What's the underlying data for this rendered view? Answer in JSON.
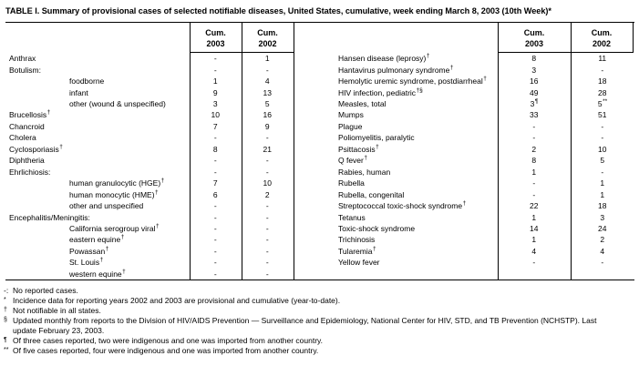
{
  "title": "TABLE I. Summary of provisional cases of selected notifiable diseases, United States, cumulative, week ending March 8, 2003 (10th Week)*",
  "header": {
    "cols": [
      {
        "l1": "Cum.",
        "l2": "2003"
      },
      {
        "l1": "Cum.",
        "l2": "2002"
      },
      {
        "l1": "Cum.",
        "l2": "2003"
      },
      {
        "l1": "Cum.",
        "l2": "2002"
      }
    ]
  },
  "left_rows": [
    {
      "label": "Anthrax",
      "sup": "",
      "indent": 0,
      "c2003": "-",
      "c2002": "1"
    },
    {
      "label": "Botulism:",
      "sup": "",
      "indent": 0,
      "c2003": "-",
      "c2002": "-"
    },
    {
      "label": "foodborne",
      "sup": "",
      "indent": 1,
      "c2003": "1",
      "c2002": "4"
    },
    {
      "label": "infant",
      "sup": "",
      "indent": 1,
      "c2003": "9",
      "c2002": "13"
    },
    {
      "label": "other (wound & unspecified)",
      "sup": "",
      "indent": 1,
      "c2003": "3",
      "c2002": "5"
    },
    {
      "label": "Brucellosis",
      "sup": "†",
      "indent": 0,
      "c2003": "10",
      "c2002": "16"
    },
    {
      "label": "Chancroid",
      "sup": "",
      "indent": 0,
      "c2003": "7",
      "c2002": "9"
    },
    {
      "label": "Cholera",
      "sup": "",
      "indent": 0,
      "c2003": "-",
      "c2002": "-"
    },
    {
      "label": "Cyclosporiasis",
      "sup": "†",
      "indent": 0,
      "c2003": "8",
      "c2002": "21"
    },
    {
      "label": "Diphtheria",
      "sup": "",
      "indent": 0,
      "c2003": "-",
      "c2002": "-"
    },
    {
      "label": "Ehrlichiosis:",
      "sup": "",
      "indent": 0,
      "c2003": "-",
      "c2002": "-"
    },
    {
      "label": "human granulocytic (HGE)",
      "sup": "†",
      "indent": 1,
      "c2003": "7",
      "c2002": "10"
    },
    {
      "label": "human monocytic (HME)",
      "sup": "†",
      "indent": 1,
      "c2003": "6",
      "c2002": "2"
    },
    {
      "label": "other and unspecified",
      "sup": "",
      "indent": 1,
      "c2003": "-",
      "c2002": "-"
    },
    {
      "label": "Encephalitis/Meningitis:",
      "sup": "",
      "indent": 0,
      "c2003": "-",
      "c2002": "-"
    },
    {
      "label": "California serogroup viral",
      "sup": "†",
      "indent": 1,
      "c2003": "-",
      "c2002": "-"
    },
    {
      "label": "eastern equine",
      "sup": "†",
      "indent": 1,
      "c2003": "-",
      "c2002": "-"
    },
    {
      "label": "Powassan",
      "sup": "†",
      "indent": 1,
      "c2003": "-",
      "c2002": "-"
    },
    {
      "label": "St. Louis",
      "sup": "†",
      "indent": 1,
      "c2003": "-",
      "c2002": "-"
    },
    {
      "label": "western equine",
      "sup": "†",
      "indent": 1,
      "c2003": "-",
      "c2002": "-"
    }
  ],
  "right_rows": [
    {
      "label": "Hansen disease (leprosy)",
      "sup": "†",
      "c2003": "8",
      "c2002": "11"
    },
    {
      "label": "Hantavirus pulmonary syndrome",
      "sup": "†",
      "c2003": "3",
      "c2002": "-"
    },
    {
      "label": "Hemolytic uremic syndrome, postdiarrheal",
      "sup": "†",
      "c2003": "16",
      "c2002": "18"
    },
    {
      "label": "HIV infection, pediatric",
      "sup": "†§",
      "c2003": "49",
      "c2002": "28"
    },
    {
      "label": "Measles, total",
      "sup": "",
      "c2003": "3",
      "c2003sup": "¶",
      "c2002": "5",
      "c2002sup": "**"
    },
    {
      "label": "Mumps",
      "sup": "",
      "c2003": "33",
      "c2002": "51"
    },
    {
      "label": "Plague",
      "sup": "",
      "c2003": "-",
      "c2002": "-"
    },
    {
      "label": "Poliomyelitis, paralytic",
      "sup": "",
      "c2003": "-",
      "c2002": "-"
    },
    {
      "label": "Psittacosis",
      "sup": "†",
      "c2003": "2",
      "c2002": "10"
    },
    {
      "label": "Q fever",
      "sup": "†",
      "c2003": "8",
      "c2002": "5"
    },
    {
      "label": "Rabies, human",
      "sup": "",
      "c2003": "1",
      "c2002": "-"
    },
    {
      "label": "Rubella",
      "sup": "",
      "c2003": "-",
      "c2002": "1"
    },
    {
      "label": "Rubella, congenital",
      "sup": "",
      "c2003": "-",
      "c2002": "1"
    },
    {
      "label": "Streptococcal toxic-shock syndrome",
      "sup": "†",
      "c2003": "22",
      "c2002": "18"
    },
    {
      "label": "Tetanus",
      "sup": "",
      "c2003": "1",
      "c2002": "3"
    },
    {
      "label": "Toxic-shock syndrome",
      "sup": "",
      "c2003": "14",
      "c2002": "24"
    },
    {
      "label": "Trichinosis",
      "sup": "",
      "c2003": "1",
      "c2002": "2"
    },
    {
      "label": "Tularemia",
      "sup": "†",
      "c2003": "4",
      "c2002": "4"
    },
    {
      "label": "Yellow fever",
      "sup": "",
      "c2003": "-",
      "c2002": "-"
    },
    {
      "label": "",
      "sup": "",
      "c2003": "",
      "c2002": ""
    }
  ],
  "footnotes": [
    {
      "marker": "-:",
      "sup": false,
      "text": "No reported cases."
    },
    {
      "marker": "*",
      "sup": true,
      "text": "Incidence data for reporting years 2002 and 2003 are provisional and cumulative (year-to-date)."
    },
    {
      "marker": "†",
      "sup": true,
      "text": "Not notifiable in all states."
    },
    {
      "marker": "§",
      "sup": true,
      "text": "Updated monthly from reports to the Division of HIV/AIDS Prevention — Surveillance and Epidemiology, National Center for HIV, STD, and TB Prevention (NCHSTP). Last update February 23, 2003."
    },
    {
      "marker": "¶",
      "sup": true,
      "text": "Of three cases reported, two were indigenous and one was imported from another country."
    },
    {
      "marker": "**",
      "sup": true,
      "text": "Of five cases reported, four were indigenous and one was imported from another country."
    }
  ],
  "colors": {
    "text": "#000000",
    "background": "#ffffff",
    "rule": "#000000"
  }
}
